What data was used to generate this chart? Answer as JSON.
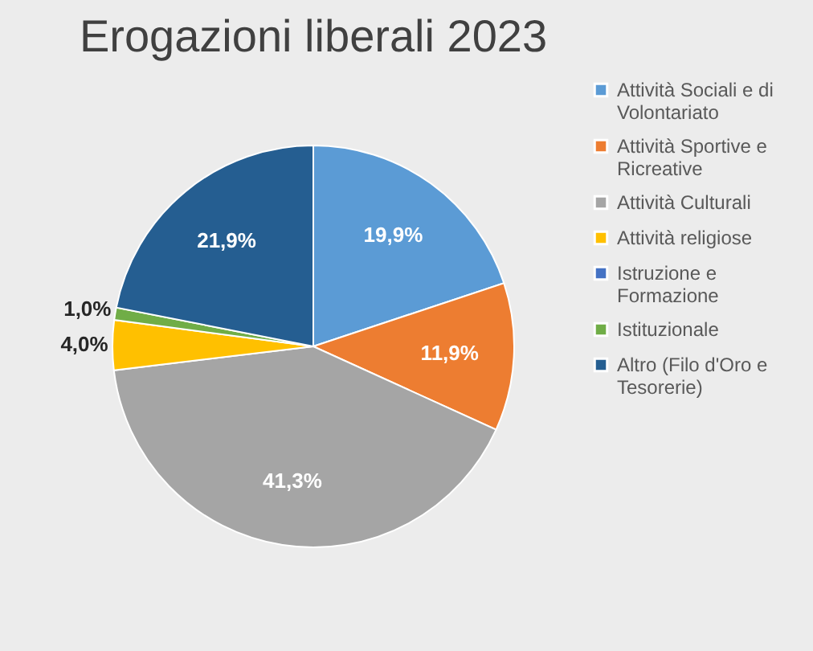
{
  "chart_data": {
    "type": "pie",
    "title": "Erogazioni liberali 2023",
    "categories": [
      "Attività Sociali e di Volontariato",
      "Attività Sportive e Ricreative",
      "Attività Culturali",
      "Attività religiose",
      "Istruzione  e Formazione",
      "Istituzionale",
      "Altro (Filo d'Oro e Tesorerie)"
    ],
    "values": [
      19.9,
      11.9,
      41.3,
      4.0,
      0,
      1.0,
      21.9
    ],
    "value_labels": [
      "19,9%",
      "11,9%",
      "41,3%",
      "4,0%",
      null,
      "1,0%",
      "21,9%"
    ],
    "colors": [
      "#5b9bd5",
      "#ed7d31",
      "#a5a5a5",
      "#ffc000",
      "#4472c4",
      "#70ad47",
      "#255e91"
    ],
    "legend": "right"
  }
}
